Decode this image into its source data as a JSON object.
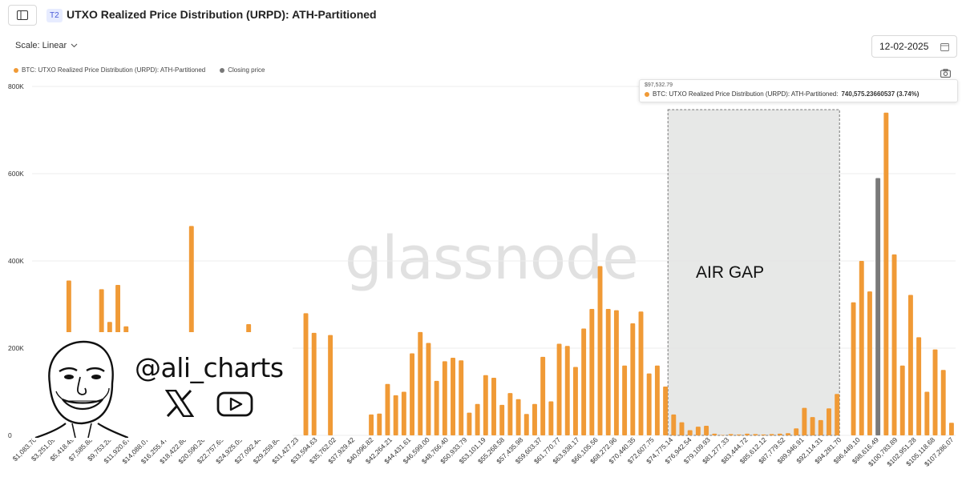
{
  "header": {
    "tier_badge": "T2",
    "title": "UTXO Realized Price Distribution (URPD): ATH-Partitioned"
  },
  "controls": {
    "scale_label": "Scale: Linear",
    "date": "12-02-2025"
  },
  "legend": [
    {
      "label": "BTC: UTXO Realized Price Distribution (URPD): ATH-Partitioned",
      "color": "#f09a36"
    },
    {
      "label": "Closing price",
      "color": "#777777"
    }
  ],
  "tooltip": {
    "x": "$97,532.79",
    "series": "BTC: UTXO Realized Price Distribution (URPD): ATH-Partitioned:",
    "value": "740,575.23660537 (3.74%)"
  },
  "watermark": "glassnode",
  "annotation": "AIR GAP",
  "overlay": {
    "handle": "@ali_charts",
    "icons": [
      "caricature-avatar",
      "x-logo-icon",
      "youtube-icon"
    ]
  },
  "chart_data": {
    "type": "bar",
    "ylim": [
      0,
      800000
    ],
    "yticks": [
      {
        "v": 0,
        "label": "0"
      },
      {
        "v": 200000,
        "label": "200K"
      },
      {
        "v": 400000,
        "label": "400K"
      },
      {
        "v": 600000,
        "label": "600K"
      },
      {
        "v": 800000,
        "label": "800K"
      }
    ],
    "x_tick_labels": [
      "$1,083.70",
      "$3,251.09",
      "$5,418.49",
      "$7,585.88",
      "$9,753.28",
      "$11,920.67",
      "$14,088.07",
      "$16,255.47",
      "$18,422.86",
      "$20,590.26",
      "$22,757.65",
      "$24,925.05",
      "$27,092.44",
      "$29,259.84",
      "$31,427.23",
      "$33,594.63",
      "$35,762.02",
      "$37,929.42",
      "$40,096.82",
      "$42,264.21",
      "$44,431.61",
      "$46,599.00",
      "$48,766.40",
      "$50,933.79",
      "$53,101.19",
      "$55,268.58",
      "$57,435.98",
      "$59,603.37",
      "$61,770.77",
      "$63,938.17",
      "$66,105.56",
      "$68,272.96",
      "$70,440.35",
      "$72,607.75",
      "$74,775.14",
      "$76,942.54",
      "$79,109.93",
      "$81,277.33",
      "$83,444.72",
      "$85,612.12",
      "$87,779.52",
      "$89,946.91",
      "$92,114.31",
      "$94,281.70",
      "$96,449.10",
      "$98,616.49",
      "$100,783.89",
      "$102,951.28",
      "$105,118.68",
      "$107,286.07"
    ],
    "bucket_width": 1083.7,
    "values": [
      0,
      0,
      0,
      0,
      355000,
      0,
      0,
      0,
      335000,
      260000,
      345000,
      250000,
      0,
      0,
      0,
      0,
      0,
      0,
      0,
      480000,
      0,
      0,
      0,
      0,
      0,
      0,
      255000,
      0,
      0,
      0,
      0,
      0,
      0,
      280000,
      235000,
      0,
      230000,
      0,
      0,
      0,
      0,
      48000,
      50000,
      118000,
      92000,
      100000,
      188000,
      237000,
      212000,
      125000,
      170000,
      178000,
      172000,
      52000,
      72000,
      138000,
      132000,
      70000,
      97000,
      83000,
      49000,
      72000,
      180000,
      78000,
      210000,
      205000,
      157000,
      245000,
      290000,
      388000,
      290000,
      287000,
      160000,
      257000,
      284000,
      142000,
      160000,
      112000,
      48000,
      30000,
      12000,
      20000,
      22000,
      4000,
      1000,
      3000,
      2000,
      4000,
      3000,
      2000,
      3000,
      4000,
      5000,
      16000,
      63000,
      42000,
      35000,
      62000,
      95000,
      0,
      305000,
      400000,
      330000,
      590000,
      740000,
      415000,
      160000,
      322000,
      225000,
      100000,
      197000,
      150000,
      29000
    ],
    "closing_price_index": 103,
    "highlight_range": [
      78,
      98
    ],
    "bar_color": "#f09a36",
    "closing_color": "#7a7a7a"
  }
}
